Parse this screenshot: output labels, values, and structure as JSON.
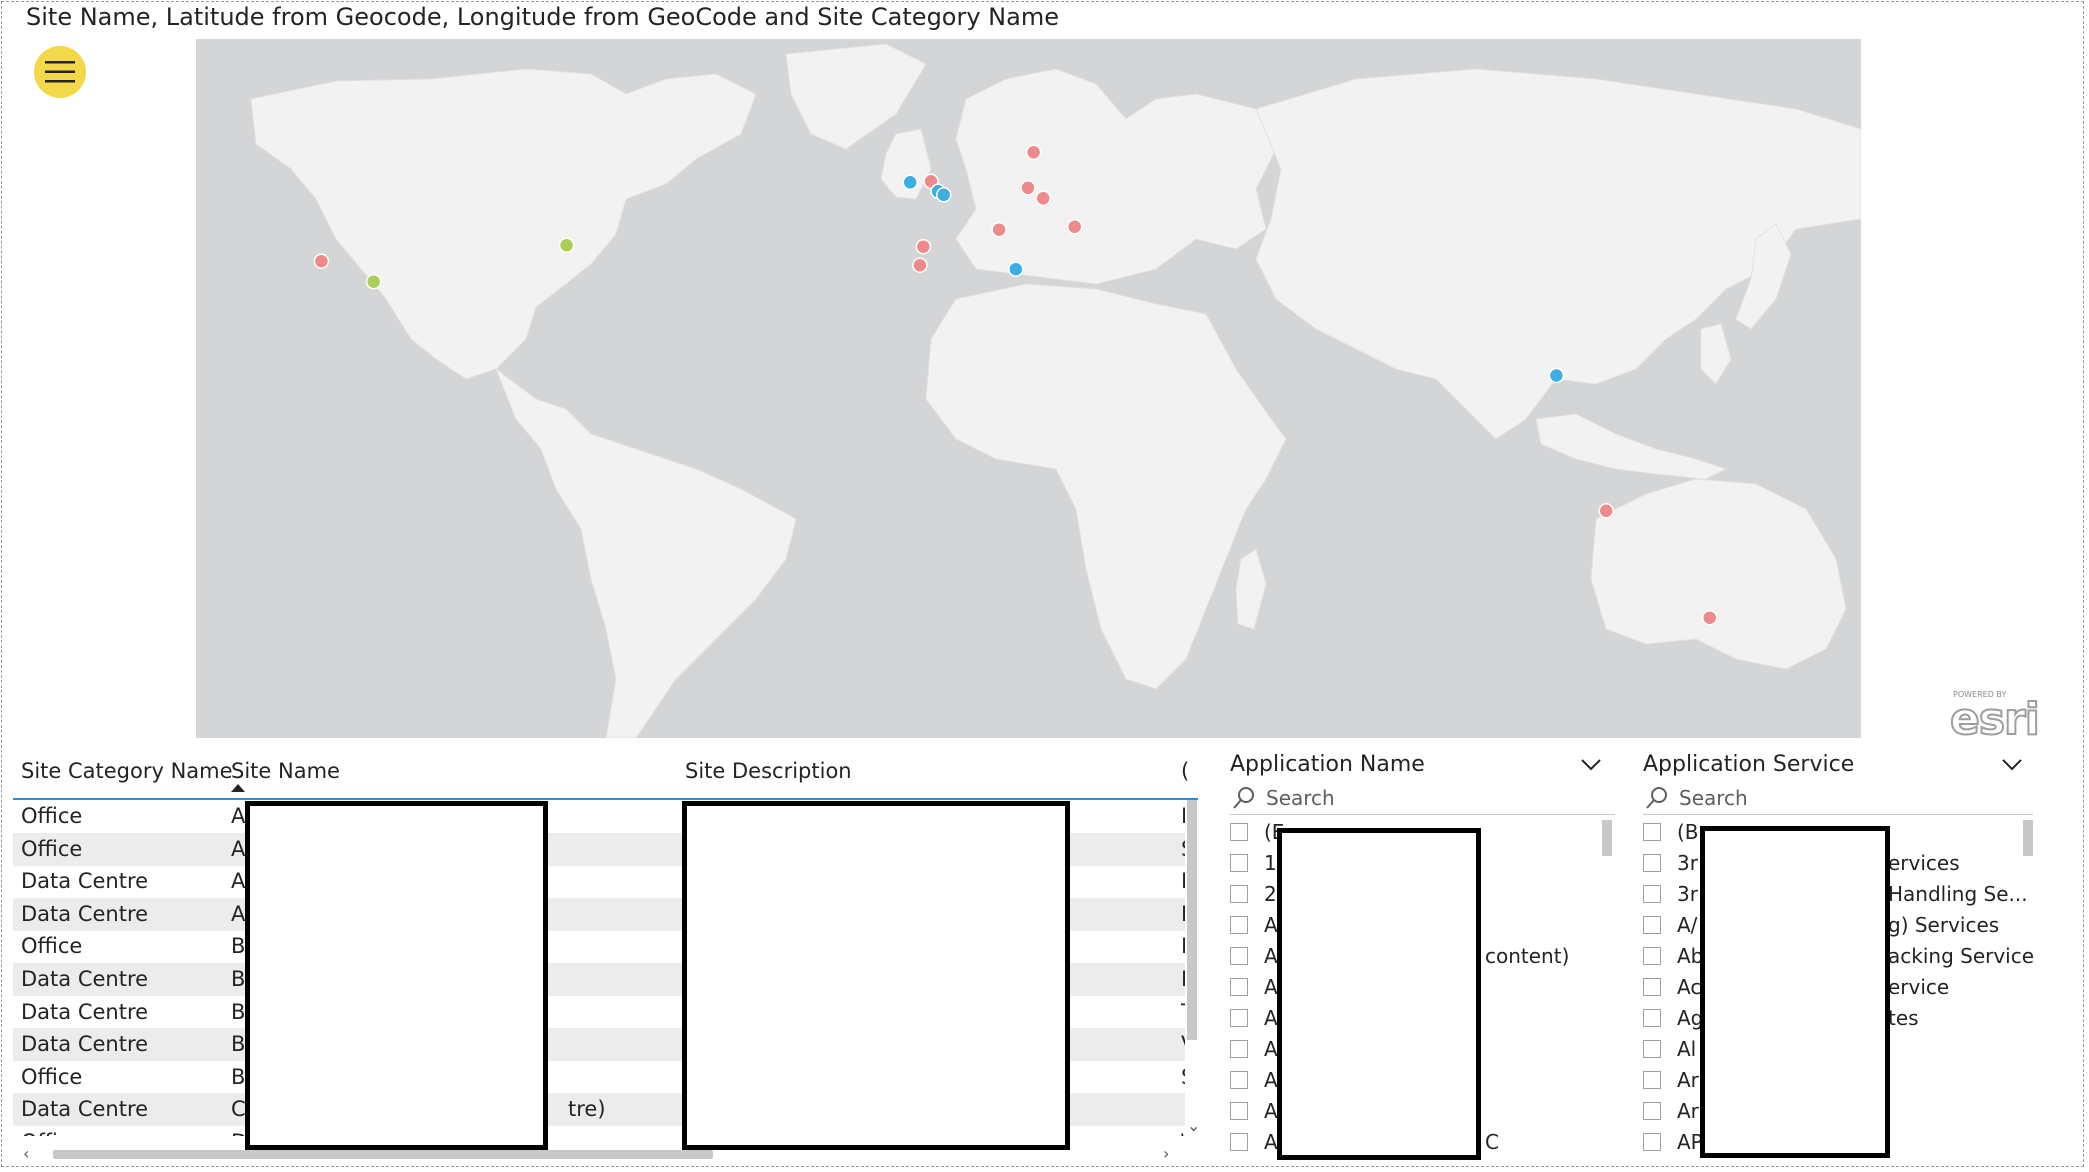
{
  "title": "Site Name, Latitude from Geocode, Longitude from GeoCode and Site Category Name",
  "menu": {
    "icon": "hamburger-icon",
    "color": "#f3d84a"
  },
  "map": {
    "provider_label": "esri",
    "provider_prefix": "POWERED BY",
    "colors": {
      "office": "#ee8a89",
      "data_centre": "#3caee0",
      "other": "#a9cf54",
      "land": "#f2f2f2",
      "water": "#d3d5d7"
    },
    "locations": [
      {
        "category": "office",
        "lat": 37.5,
        "lon": -122.3
      },
      {
        "category": "other",
        "lat": 33.4,
        "lon": -112.0
      },
      {
        "category": "other",
        "lat": 40.7,
        "lon": -74.0
      },
      {
        "category": "data_centre",
        "lat": 53.3,
        "lon": -6.3
      },
      {
        "category": "office",
        "lat": 53.5,
        "lon": -2.2
      },
      {
        "category": "data_centre",
        "lat": 51.5,
        "lon": -0.8
      },
      {
        "category": "data_centre",
        "lat": 50.8,
        "lon": 0.3
      },
      {
        "category": "office",
        "lat": 59.3,
        "lon": 18.0
      },
      {
        "category": "office",
        "lat": 52.2,
        "lon": 16.9
      },
      {
        "category": "office",
        "lat": 50.1,
        "lon": 19.9
      },
      {
        "category": "office",
        "lat": 44.4,
        "lon": 26.1
      },
      {
        "category": "office",
        "lat": 43.8,
        "lon": 11.2
      },
      {
        "category": "office",
        "lat": 40.4,
        "lon": -3.7
      },
      {
        "category": "office",
        "lat": 36.7,
        "lon": -4.4
      },
      {
        "category": "data_centre",
        "lat": 35.9,
        "lon": 14.5
      },
      {
        "category": "data_centre",
        "lat": 14.6,
        "lon": 121.0
      },
      {
        "category": "office",
        "lat": -12.5,
        "lon": 130.8
      },
      {
        "category": "office",
        "lat": -33.9,
        "lon": 151.2
      }
    ]
  },
  "table": {
    "headers": [
      "Site Category Name",
      "Site Name",
      "Site Description",
      "("
    ],
    "rows": [
      {
        "category": "Office",
        "name": "A",
        "desc": "",
        "extra": "D"
      },
      {
        "category": "Office",
        "name": "A",
        "desc": "",
        "extra": "S"
      },
      {
        "category": "Data Centre",
        "name": "A",
        "desc": "",
        "extra": "I"
      },
      {
        "category": "Data Centre",
        "name": "A",
        "desc": "",
        "extra": "L"
      },
      {
        "category": "Office",
        "name": "B",
        "desc": "",
        "extra": "E"
      },
      {
        "category": "Data Centre",
        "name": "B",
        "desc": "",
        "extra": "E"
      },
      {
        "category": "Data Centre",
        "name": "B",
        "desc": "",
        "extra": "T"
      },
      {
        "category": "Data Centre",
        "name": "B",
        "desc": "",
        "extra": "V"
      },
      {
        "category": "Office",
        "name": "B",
        "desc": "",
        "extra": "S"
      },
      {
        "category": "Data Centre",
        "name": "C",
        "name_tail": "tre)",
        "desc": "",
        "extra": ""
      },
      {
        "category": "Office",
        "name": "D",
        "desc": "",
        "extra": "\\"
      }
    ]
  },
  "slicers": [
    {
      "title": "Application Name",
      "search_placeholder": "Search",
      "items": [
        {
          "head": "(E",
          "tail": ""
        },
        {
          "head": "1",
          "tail": ""
        },
        {
          "head": "2",
          "tail": ""
        },
        {
          "head": "A",
          "tail": ""
        },
        {
          "head": "A",
          "tail": "content)"
        },
        {
          "head": "A",
          "tail": ""
        },
        {
          "head": "A",
          "tail": ""
        },
        {
          "head": "A",
          "tail": ""
        },
        {
          "head": "A",
          "tail": ""
        },
        {
          "head": "A",
          "tail": ""
        },
        {
          "head": "A",
          "tail": "C"
        }
      ]
    },
    {
      "title": "Application Service",
      "search_placeholder": "Search",
      "items": [
        {
          "head": "(B",
          "tail": ""
        },
        {
          "head": "3r",
          "tail": "ervices"
        },
        {
          "head": "3r",
          "tail": "Handling Se..."
        },
        {
          "head": "A/",
          "tail": "g) Services"
        },
        {
          "head": "Ab",
          "tail": "acking Services"
        },
        {
          "head": "Ac",
          "tail": "ervice"
        },
        {
          "head": "Ag",
          "tail": "tes"
        },
        {
          "head": "Al",
          "tail": ""
        },
        {
          "head": "Ar",
          "tail": ""
        },
        {
          "head": "Ar",
          "tail": ""
        },
        {
          "head": "AP",
          "tail": ""
        }
      ]
    }
  ]
}
